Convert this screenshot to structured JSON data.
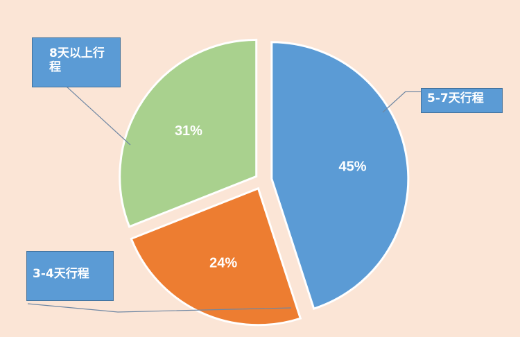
{
  "chart_data": {
    "type": "pie",
    "categories": [
      "5-7天行程",
      "3-4天行程",
      "8天以上行程"
    ],
    "values": [
      45,
      24,
      31
    ],
    "labels": [
      "45%",
      "24%",
      "31%"
    ],
    "colors": [
      "#5b9bd5",
      "#ed7d31",
      "#a9d18e"
    ],
    "exploded": true,
    "legend": "callouts"
  }
}
